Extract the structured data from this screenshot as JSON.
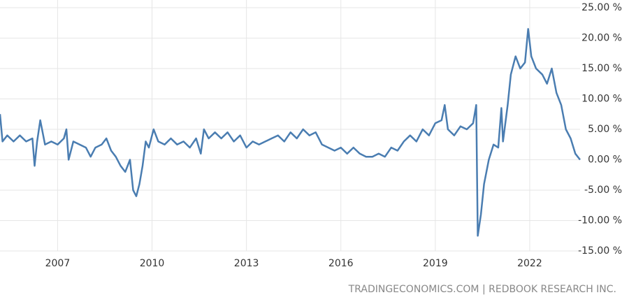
{
  "chart_data": {
    "type": "line",
    "source": "TRADINGECONOMICS.COM | REDBOOK RESEARCH INC.",
    "x": [
      2005.17,
      2005.25,
      2005.4,
      2005.6,
      2005.8,
      2006.0,
      2006.2,
      2006.27,
      2006.35,
      2006.45,
      2006.6,
      2006.8,
      2007.0,
      2007.2,
      2007.28,
      2007.35,
      2007.5,
      2007.7,
      2007.9,
      2008.05,
      2008.2,
      2008.4,
      2008.55,
      2008.7,
      2008.85,
      2009.0,
      2009.15,
      2009.3,
      2009.4,
      2009.5,
      2009.6,
      2009.7,
      2009.8,
      2009.9,
      2010.05,
      2010.2,
      2010.4,
      2010.6,
      2010.8,
      2011.0,
      2011.2,
      2011.4,
      2011.55,
      2011.65,
      2011.8,
      2012.0,
      2012.2,
      2012.4,
      2012.6,
      2012.8,
      2013.0,
      2013.2,
      2013.4,
      2013.6,
      2013.8,
      2014.0,
      2014.2,
      2014.4,
      2014.6,
      2014.8,
      2015.0,
      2015.2,
      2015.4,
      2015.6,
      2015.8,
      2016.0,
      2016.2,
      2016.4,
      2016.6,
      2016.8,
      2017.0,
      2017.2,
      2017.4,
      2017.6,
      2017.8,
      2018.0,
      2018.2,
      2018.4,
      2018.6,
      2018.8,
      2019.0,
      2019.2,
      2019.3,
      2019.4,
      2019.6,
      2019.8,
      2020.0,
      2020.2,
      2020.3,
      2020.35,
      2020.45,
      2020.55,
      2020.7,
      2020.85,
      2021.0,
      2021.1,
      2021.15,
      2021.3,
      2021.4,
      2021.55,
      2021.7,
      2021.85,
      2021.95,
      2022.05,
      2022.2,
      2022.4,
      2022.55,
      2022.7,
      2022.85,
      2023.0,
      2023.15,
      2023.3,
      2023.45,
      2023.6
    ],
    "series": [
      {
        "color": "#4a7db1",
        "values": [
          7.5,
          3,
          4,
          3,
          4,
          3,
          3.5,
          -1,
          3,
          6.5,
          2.5,
          3,
          2.5,
          3.5,
          5,
          0,
          3,
          2.5,
          2,
          0.5,
          2,
          2.5,
          3.5,
          1.5,
          0.5,
          -1,
          -2,
          0,
          -5,
          -6,
          -4,
          -1,
          3,
          2,
          5,
          3,
          2.5,
          3.5,
          2.5,
          3,
          2,
          3.5,
          1,
          5,
          3.5,
          4.5,
          3.5,
          4.5,
          3,
          4,
          2,
          3,
          2.5,
          3,
          3.5,
          4,
          3,
          4.5,
          3.5,
          5,
          4,
          4.5,
          2.5,
          2,
          1.5,
          2,
          1,
          2,
          1,
          0.5,
          0.5,
          1,
          0.5,
          2,
          1.5,
          3,
          4,
          3,
          5,
          4,
          6,
          6.5,
          9,
          5,
          4,
          5.5,
          5,
          6,
          9,
          -12.5,
          -9,
          -4,
          0,
          2.5,
          2,
          8.5,
          3,
          9,
          14,
          17,
          15,
          16,
          21.5,
          17,
          15,
          14,
          12.5,
          15,
          11,
          9,
          5,
          3.5,
          1,
          0
        ]
      }
    ],
    "xlim": [
      2005.17,
      2023.6
    ],
    "xticks": [
      2007,
      2010,
      2013,
      2016,
      2019,
      2022
    ],
    "ylim": [
      -15,
      25
    ],
    "yticks": [
      {
        "value": -15,
        "label": "-15.00 %"
      },
      {
        "value": -10,
        "label": "-10.00 %"
      },
      {
        "value": -5,
        "label": "-5.00 %"
      },
      {
        "value": 0,
        "label": "0.00 %"
      },
      {
        "value": 5,
        "label": "5.00 %"
      },
      {
        "value": 10,
        "label": "10.00 %"
      },
      {
        "value": 15,
        "label": "15.00 %"
      },
      {
        "value": 20,
        "label": "20.00 %"
      },
      {
        "value": 25,
        "label": "25.00 %"
      }
    ],
    "grid": true
  }
}
